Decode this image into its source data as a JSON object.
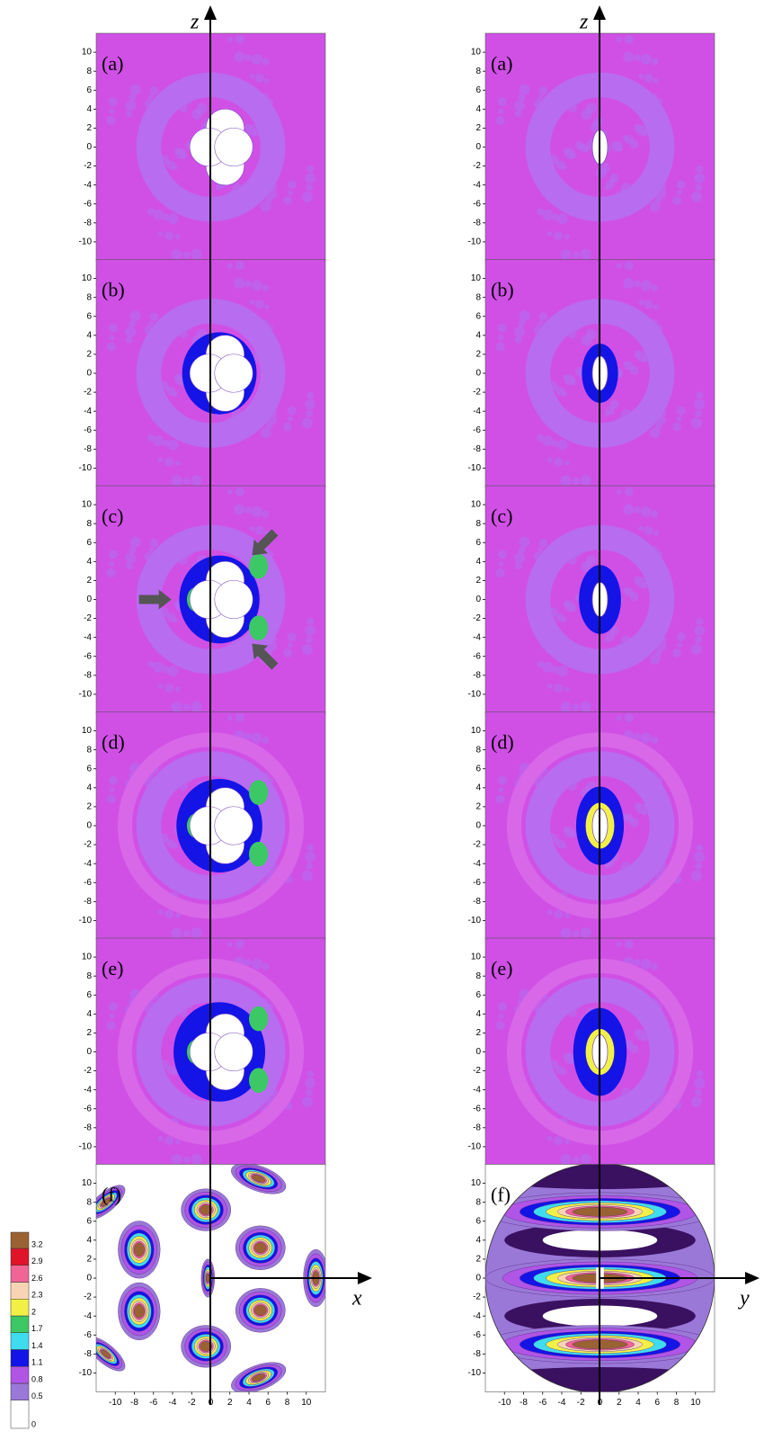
{
  "axis_labels": {
    "left_vertical": "z",
    "left_horizontal": "x",
    "right_vertical": "z",
    "right_horizontal": "y"
  },
  "colorbar": {
    "ticks": [
      0,
      0.5,
      0.8,
      1.1,
      1.4,
      1.7,
      2,
      2.3,
      2.6,
      2.9,
      3.2
    ],
    "colors": [
      "#ffffff",
      "#9a78d8",
      "#b055e6",
      "#1414e6",
      "#3fdcf0",
      "#3cc864",
      "#f2f046",
      "#f8d4b4",
      "#f06496",
      "#e01428",
      "#9a6232"
    ]
  },
  "chart_data": [
    {
      "type": "contour",
      "label": "(a)",
      "xlim": [
        -12,
        12
      ],
      "ylim": [
        -12,
        12
      ],
      "yticks": [
        10,
        8,
        6,
        4,
        2,
        0,
        -2,
        -4,
        -6,
        -8,
        -10
      ]
    },
    {
      "type": "contour",
      "label": "(b)",
      "xlim": [
        -12,
        12
      ],
      "ylim": [
        -12,
        12
      ],
      "yticks": [
        10,
        8,
        6,
        4,
        2,
        0,
        -2,
        -4,
        -6,
        -8,
        -10
      ]
    },
    {
      "type": "contour",
      "label": "(c)",
      "xlim": [
        -12,
        12
      ],
      "ylim": [
        -12,
        12
      ],
      "yticks": [
        10,
        8,
        6,
        4,
        2,
        0,
        -2,
        -4,
        -6,
        -8,
        -10
      ]
    },
    {
      "type": "contour",
      "label": "(d)",
      "xlim": [
        -12,
        12
      ],
      "ylim": [
        -12,
        12
      ],
      "yticks": [
        10,
        8,
        6,
        4,
        2,
        0,
        -2,
        -4,
        -6,
        -8,
        -10
      ]
    },
    {
      "type": "contour",
      "label": "(e)",
      "xlim": [
        -12,
        12
      ],
      "ylim": [
        -12,
        12
      ],
      "yticks": [
        10,
        8,
        6,
        4,
        2,
        0,
        -2,
        -4,
        -6,
        -8,
        -10
      ]
    },
    {
      "type": "contour",
      "label": "(f)",
      "xlim": [
        -12,
        12
      ],
      "ylim": [
        -12,
        12
      ],
      "yticks": [
        10,
        8,
        6,
        4,
        2,
        0,
        -2,
        -4,
        -6,
        -8,
        -10
      ],
      "xticks": [
        -10,
        -8,
        -6,
        -4,
        -2,
        0,
        2,
        4,
        6,
        8,
        10
      ]
    },
    {
      "type": "contour",
      "label": "(a)",
      "xlim": [
        -12,
        12
      ],
      "ylim": [
        -12,
        12
      ],
      "yticks": [
        10,
        8,
        6,
        4,
        2,
        0,
        -2,
        -4,
        -6,
        -8,
        -10
      ]
    },
    {
      "type": "contour",
      "label": "(b)",
      "xlim": [
        -12,
        12
      ],
      "ylim": [
        -12,
        12
      ],
      "yticks": [
        10,
        8,
        6,
        4,
        2,
        0,
        -2,
        -4,
        -6,
        -8,
        -10
      ]
    },
    {
      "type": "contour",
      "label": "(c)",
      "xlim": [
        -12,
        12
      ],
      "ylim": [
        -12,
        12
      ],
      "yticks": [
        10,
        8,
        6,
        4,
        2,
        0,
        -2,
        -4,
        -6,
        -8,
        -10
      ]
    },
    {
      "type": "contour",
      "label": "(d)",
      "xlim": [
        -12,
        12
      ],
      "ylim": [
        -12,
        12
      ],
      "yticks": [
        10,
        8,
        6,
        4,
        2,
        0,
        -2,
        -4,
        -6,
        -8,
        -10
      ]
    },
    {
      "type": "contour",
      "label": "(e)",
      "xlim": [
        -12,
        12
      ],
      "ylim": [
        -12,
        12
      ],
      "yticks": [
        10,
        8,
        6,
        4,
        2,
        0,
        -2,
        -4,
        -6,
        -8,
        -10
      ]
    },
    {
      "type": "contour",
      "label": "(f)",
      "xlim": [
        -12,
        12
      ],
      "ylim": [
        -12,
        12
      ],
      "yticks": [
        10,
        8,
        6,
        4,
        2,
        0,
        -2,
        -4,
        -6,
        -8,
        -10
      ],
      "xticks": [
        -10,
        -8,
        -6,
        -4,
        -2,
        0,
        2,
        4,
        6,
        8,
        10
      ]
    }
  ]
}
